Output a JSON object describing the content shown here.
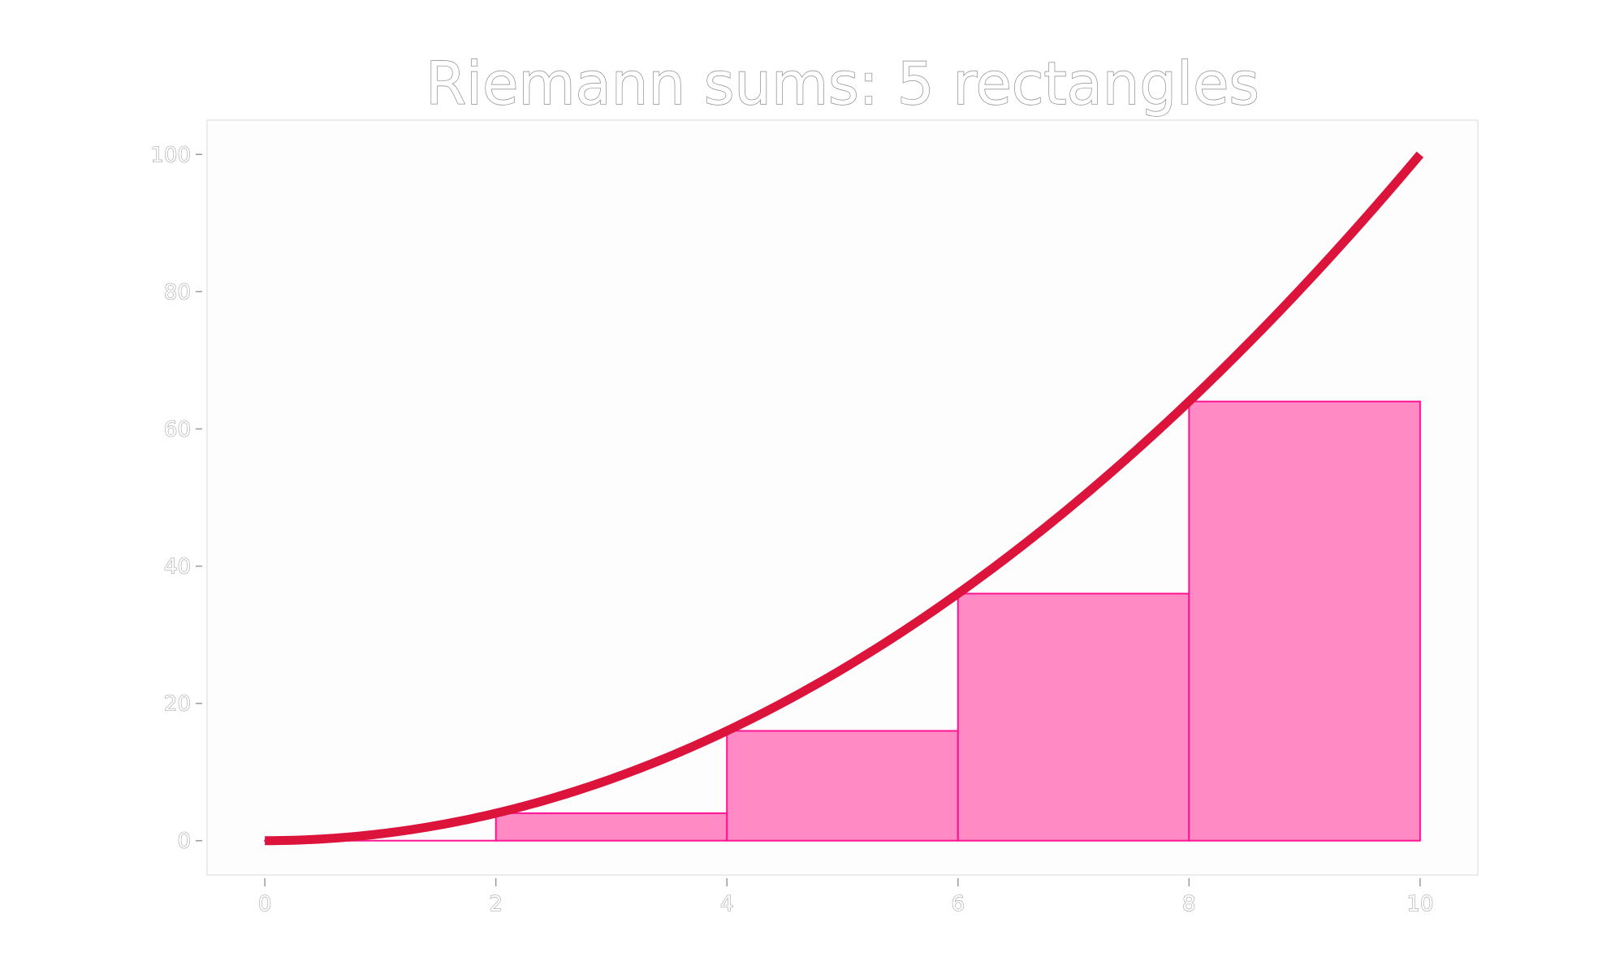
{
  "chart_data": {
    "type": "bar",
    "title": "Riemann sums: 5 rectangles",
    "xlabel": "",
    "ylabel": "",
    "xlim": [
      -0.5,
      10.5
    ],
    "ylim": [
      -5,
      105
    ],
    "x_ticks": [
      0,
      2,
      4,
      6,
      8,
      10
    ],
    "x_tick_labels": [
      "0",
      "2",
      "4",
      "6",
      "8",
      "10"
    ],
    "y_ticks": [
      0,
      20,
      40,
      60,
      80,
      100
    ],
    "y_tick_labels": [
      "0",
      "20",
      "40",
      "60",
      "80",
      "100"
    ],
    "grid": false,
    "legend": "none",
    "curve": {
      "function": "x^2",
      "x_range": [
        0,
        10
      ],
      "color": "#dc143c"
    },
    "rectangles": {
      "edges": [
        0,
        2,
        4,
        6,
        8,
        10
      ],
      "heights": [
        0,
        4,
        16,
        36,
        64
      ],
      "fill": "#ff69b4",
      "edge_color": "#ff1493"
    },
    "background": "#fdfdfe",
    "frame_color": "#e6e6e6"
  }
}
